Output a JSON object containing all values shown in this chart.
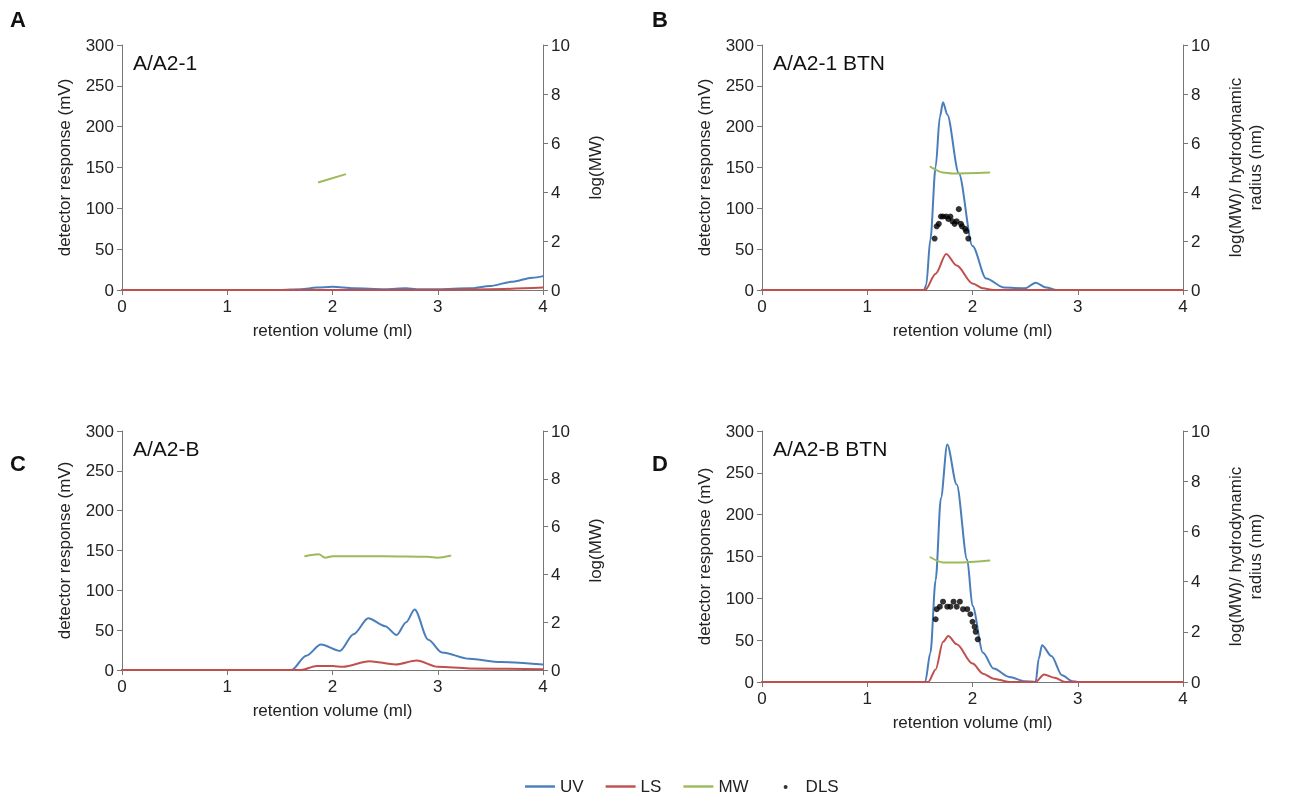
{
  "chart_data": [
    {
      "type": "line",
      "title": "A/A2-1",
      "annotations": [
        "A"
      ],
      "xlabel": "retention volume (ml)",
      "ylabel": "detector response (mV)",
      "y2label": "log(MW)",
      "xlim": [
        0,
        4
      ],
      "xticks": [
        0,
        1,
        2,
        3,
        4
      ],
      "ylim": [
        0,
        300
      ],
      "yticks": [
        0,
        50,
        100,
        150,
        200,
        250,
        300
      ],
      "y2lim": [
        0,
        10
      ],
      "y2ticks": [
        0,
        2,
        4,
        6,
        8,
        10
      ],
      "grid": false,
      "legend": false,
      "line_style": "solid",
      "series": [
        {
          "color": "#4a7ebb",
          "x": [
            0,
            1.5,
            1.7,
            1.85,
            2.0,
            2.2,
            2.5,
            2.7,
            2.8,
            3.0,
            3.3,
            3.5,
            3.7,
            3.9,
            4.0
          ],
          "values": [
            0,
            0,
            1,
            3,
            4,
            2,
            1,
            2,
            1,
            1,
            2,
            5,
            10,
            15,
            17
          ]
        },
        {
          "color": "#c0504d",
          "x": [
            0,
            3.0,
            3.5,
            4.0
          ],
          "values": [
            0,
            0,
            1,
            3
          ]
        },
        {
          "color": "#9bbb59",
          "axis": "y2",
          "x": [
            1.87,
            2.12
          ],
          "values": [
            4.4,
            4.72
          ]
        }
      ]
    },
    {
      "type": "line",
      "title": "A/A2-1 BTN",
      "annotations": [
        "B"
      ],
      "xlabel": "retention volume (ml)",
      "ylabel": "detector response (mV)",
      "y2label": "log(MW)/ hydrodynamic radius (nm)",
      "xlim": [
        0,
        4
      ],
      "xticks": [
        0,
        1,
        2,
        3,
        4
      ],
      "ylim": [
        0,
        300
      ],
      "yticks": [
        0,
        50,
        100,
        150,
        200,
        250,
        300
      ],
      "y2lim": [
        0,
        10
      ],
      "y2ticks": [
        0,
        2,
        4,
        6,
        8,
        10
      ],
      "grid": false,
      "legend": false,
      "line_style": "solid",
      "series": [
        {
          "color": "#4a7ebb",
          "x": [
            0,
            1.54,
            1.56,
            1.6,
            1.65,
            1.69,
            1.72,
            1.76,
            1.87,
            2.0,
            2.13,
            2.3,
            2.5,
            2.6,
            2.7,
            2.8,
            4.0
          ],
          "values": [
            0,
            0,
            6,
            62,
            151,
            212,
            230,
            215,
            143,
            54,
            14,
            3,
            2,
            9,
            3,
            0,
            0
          ]
        },
        {
          "color": "#c0504d",
          "x": [
            0,
            1.55,
            1.65,
            1.75,
            1.85,
            2.0,
            2.1,
            2.2,
            4.0
          ],
          "values": [
            0,
            0,
            20,
            44,
            30,
            8,
            2,
            0,
            0
          ]
        },
        {
          "color": "#9bbb59",
          "axis": "y2",
          "x": [
            1.6,
            1.72,
            1.81,
            2.16
          ],
          "values": [
            5.03,
            4.8,
            4.76,
            4.8
          ]
        },
        {
          "type": "scatter",
          "marker": "circle",
          "color": "#000000",
          "axis": "y2",
          "x": [
            1.64,
            1.66,
            1.68,
            1.7,
            1.72,
            1.75,
            1.77,
            1.79,
            1.81,
            1.83,
            1.85,
            1.87,
            1.89,
            1.9,
            1.93,
            1.94,
            1.96
          ],
          "values": [
            2.1,
            2.6,
            2.7,
            3.0,
            3.0,
            3.0,
            2.9,
            3.0,
            2.8,
            2.7,
            2.8,
            3.3,
            2.7,
            2.6,
            2.5,
            2.4,
            2.1
          ]
        }
      ]
    },
    {
      "type": "line",
      "title": "A/A2-B",
      "annotations": [
        "C"
      ],
      "xlabel": "retention volume (ml)",
      "ylabel": "detector response (mV)",
      "y2label": "log(MW)",
      "xlim": [
        0,
        4
      ],
      "xticks": [
        0,
        1,
        2,
        3,
        4
      ],
      "ylim": [
        0,
        300
      ],
      "yticks": [
        0,
        50,
        100,
        150,
        200,
        250,
        300
      ],
      "y2lim": [
        0,
        10
      ],
      "y2ticks": [
        0,
        2,
        4,
        6,
        8,
        10
      ],
      "grid": false,
      "legend": false,
      "line_style": "solid",
      "series": [
        {
          "color": "#4a7ebb",
          "x": [
            0,
            1.61,
            1.75,
            1.89,
            2.07,
            2.2,
            2.34,
            2.5,
            2.61,
            2.7,
            2.78,
            2.91,
            3.04,
            3.3,
            3.6,
            4.0
          ],
          "values": [
            0,
            0,
            18,
            32,
            24,
            45,
            65,
            55,
            44,
            60,
            76,
            38,
            22,
            14,
            10,
            7
          ]
        },
        {
          "color": "#c0504d",
          "x": [
            0,
            1.7,
            1.85,
            2.0,
            2.1,
            2.35,
            2.6,
            2.8,
            3.0,
            3.3,
            4.0
          ],
          "values": [
            0,
            0,
            5,
            5,
            4,
            11,
            7,
            12,
            4,
            2,
            1
          ]
        },
        {
          "color": "#9bbb59",
          "axis": "y2",
          "x": [
            1.74,
            1.87,
            1.93,
            2.0,
            2.5,
            2.9,
            3.0,
            3.12
          ],
          "values": [
            4.76,
            4.84,
            4.7,
            4.76,
            4.76,
            4.74,
            4.7,
            4.78
          ]
        }
      ]
    },
    {
      "type": "line",
      "title": "A/A2-B BTN",
      "annotations": [
        "D"
      ],
      "xlabel": "retention volume (ml)",
      "ylabel": "detector response (mV)",
      "y2label": "log(MW)/ hydrodynamic radius (nm)",
      "xlim": [
        0,
        4
      ],
      "xticks": [
        0,
        1,
        2,
        3,
        4
      ],
      "ylim": [
        0,
        300
      ],
      "yticks": [
        0,
        50,
        100,
        150,
        200,
        250,
        300
      ],
      "y2lim": [
        0,
        10
      ],
      "y2ticks": [
        0,
        2,
        4,
        6,
        8,
        10
      ],
      "grid": false,
      "legend": "bottom",
      "line_style": "solid",
      "series": [
        {
          "name": "UV",
          "color": "#4a7ebb",
          "x": [
            0,
            1.55,
            1.6,
            1.65,
            1.7,
            1.76,
            1.85,
            1.95,
            2.0,
            2.1,
            2.2,
            2.35,
            2.5,
            2.6,
            2.63,
            2.66,
            2.75,
            2.85,
            2.95,
            3.0,
            4.0
          ],
          "values": [
            0,
            0,
            35,
            122,
            220,
            284,
            236,
            146,
            91,
            35,
            16,
            6,
            1,
            0,
            28,
            44,
            31,
            8,
            1,
            0,
            0
          ]
        },
        {
          "name": "LS",
          "color": "#c0504d",
          "x": [
            0,
            1.58,
            1.65,
            1.72,
            1.77,
            1.85,
            2.0,
            2.1,
            2.2,
            2.35,
            2.6,
            2.68,
            2.78,
            2.88,
            4.0
          ],
          "values": [
            0,
            0,
            15,
            48,
            55,
            45,
            22,
            10,
            4,
            0,
            0,
            9,
            5,
            0,
            0
          ]
        },
        {
          "name": "MW",
          "color": "#9bbb59",
          "axis": "y2",
          "x": [
            1.6,
            1.72,
            1.85,
            2.16
          ],
          "values": [
            4.97,
            4.76,
            4.76,
            4.84
          ]
        },
        {
          "name": "DLS",
          "type": "scatter",
          "marker": "circle",
          "color": "#000000",
          "axis": "y2",
          "x": [
            1.65,
            1.66,
            1.69,
            1.72,
            1.76,
            1.79,
            1.82,
            1.85,
            1.88,
            1.91,
            1.95,
            1.98,
            2.0,
            2.02,
            2.03,
            2.05
          ],
          "values": [
            2.5,
            2.9,
            3.0,
            3.2,
            3.0,
            3.0,
            3.2,
            3.0,
            3.2,
            2.9,
            2.9,
            2.7,
            2.4,
            2.2,
            2.0,
            1.7
          ]
        }
      ]
    }
  ]
}
